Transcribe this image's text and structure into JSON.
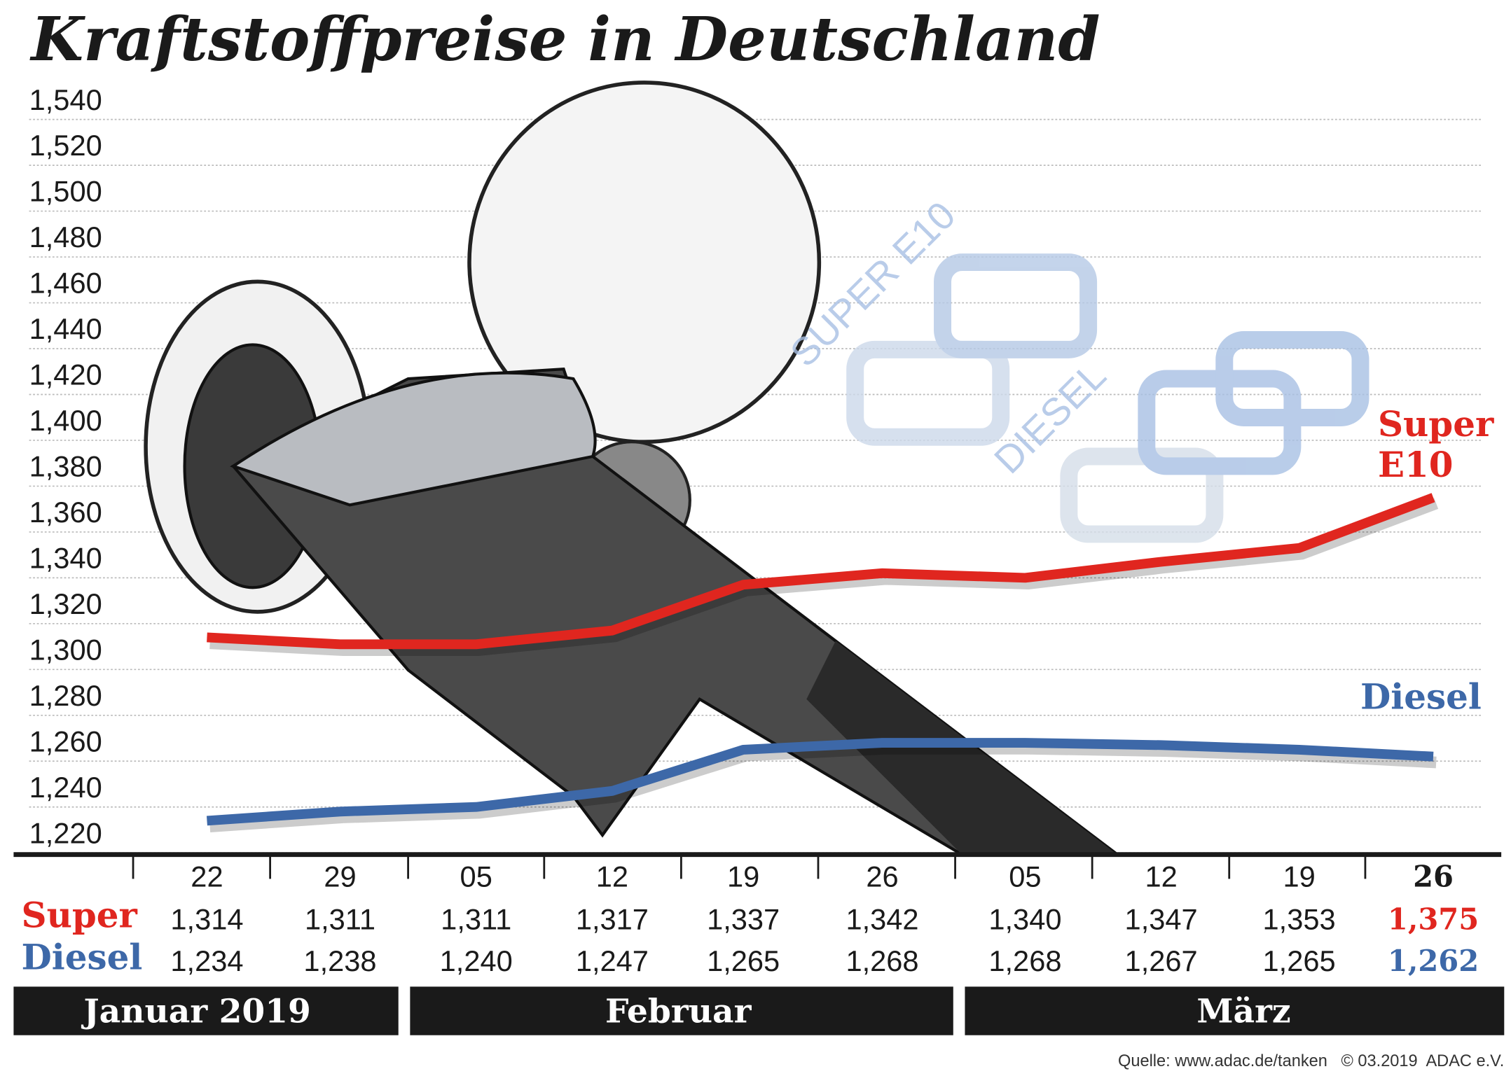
{
  "title": "Kraftstoffpreise in Deutschland",
  "source": "Quelle: www.adac.de/tanken   © 03.2019  ADAC e.V.",
  "colors": {
    "super": "#e0261f",
    "diesel": "#3d68a8",
    "month_bar": "#1a1a1a"
  },
  "decor": {
    "super_e10": "SUPER E10",
    "diesel": "DIESEL"
  },
  "chart_data": {
    "type": "line",
    "title": "Kraftstoffpreise in Deutschland",
    "ylim": [
      1.22,
      1.54
    ],
    "y_ticks": [
      "1,540",
      "1,520",
      "1,500",
      "1,480",
      "1,460",
      "1,440",
      "1,420",
      "1,400",
      "1,380",
      "1,360",
      "1,340",
      "1,320",
      "1,300",
      "1,280",
      "1,260",
      "1,240",
      "1,220"
    ],
    "grid": true,
    "categories": [
      "22",
      "29",
      "05",
      "12",
      "19",
      "26",
      "05",
      "12",
      "19",
      "26"
    ],
    "months": [
      "Januar 2019",
      "Februar",
      "März"
    ],
    "series": [
      {
        "name": "Super E10",
        "row_label": "Super",
        "line_label_1": "Super",
        "line_label_2": "E10",
        "color": "#e0261f",
        "values": [
          1.314,
          1.311,
          1.311,
          1.317,
          1.337,
          1.342,
          1.34,
          1.347,
          1.353,
          1.375
        ],
        "labels": [
          "1,314",
          "1,311",
          "1,311",
          "1,317",
          "1,337",
          "1,342",
          "1,340",
          "1,347",
          "1,353",
          "1,375"
        ]
      },
      {
        "name": "Diesel",
        "row_label": "Diesel",
        "line_label_1": "Diesel",
        "color": "#3d68a8",
        "values": [
          1.234,
          1.238,
          1.24,
          1.247,
          1.265,
          1.268,
          1.268,
          1.267,
          1.265,
          1.262
        ],
        "labels": [
          "1,234",
          "1,238",
          "1,240",
          "1,247",
          "1,265",
          "1,268",
          "1,268",
          "1,267",
          "1,265",
          "1,262"
        ]
      }
    ]
  }
}
